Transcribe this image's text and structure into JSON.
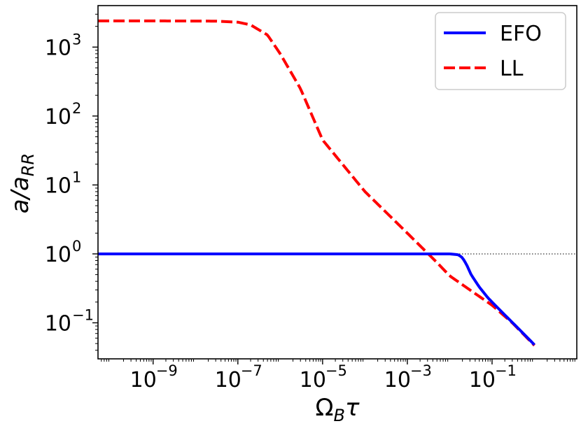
{
  "chart_data": {
    "type": "line",
    "xscale": "log",
    "yscale": "log",
    "xlim": [
      5e-11,
      10
    ],
    "ylim": [
      0.03,
      4000
    ],
    "xlabel": "Ω_B τ",
    "ylabel": "a/a_RR",
    "xticks": [
      {
        "value": 1e-09,
        "base": "10",
        "exp": "−9"
      },
      {
        "value": 1e-07,
        "base": "10",
        "exp": "−7"
      },
      {
        "value": 1e-05,
        "base": "10",
        "exp": "−5"
      },
      {
        "value": 0.001,
        "base": "10",
        "exp": "−3"
      },
      {
        "value": 0.1,
        "base": "10",
        "exp": "−1"
      }
    ],
    "yticks": [
      {
        "value": 0.1,
        "base": "10",
        "exp": "−1"
      },
      {
        "value": 1,
        "base": "10",
        "exp": "0"
      },
      {
        "value": 10,
        "base": "10",
        "exp": "1"
      },
      {
        "value": 100,
        "base": "10",
        "exp": "2"
      },
      {
        "value": 1000,
        "base": "10",
        "exp": "3"
      }
    ],
    "reference_line": {
      "y": 1,
      "style": "dotted",
      "color": "#000000"
    },
    "legend": {
      "position": "top-right"
    },
    "series": [
      {
        "name": "EFO",
        "color": "#0000ff",
        "style": "solid",
        "points": [
          {
            "x": 5e-11,
            "y": 1.0
          },
          {
            "x": 1e-09,
            "y": 1.0
          },
          {
            "x": 1e-07,
            "y": 1.0
          },
          {
            "x": 1e-05,
            "y": 1.0
          },
          {
            "x": 0.001,
            "y": 1.0
          },
          {
            "x": 0.01,
            "y": 1.0
          },
          {
            "x": 0.016,
            "y": 0.97
          },
          {
            "x": 0.02,
            "y": 0.88
          },
          {
            "x": 0.025,
            "y": 0.7
          },
          {
            "x": 0.032,
            "y": 0.5
          },
          {
            "x": 0.05,
            "y": 0.33
          },
          {
            "x": 0.08,
            "y": 0.23
          },
          {
            "x": 0.1,
            "y": 0.2
          },
          {
            "x": 0.2,
            "y": 0.13
          },
          {
            "x": 0.4,
            "y": 0.085
          },
          {
            "x": 0.7,
            "y": 0.06
          },
          {
            "x": 1.0,
            "y": 0.048
          }
        ]
      },
      {
        "name": "LL",
        "color": "#ff0000",
        "style": "dashed",
        "points": [
          {
            "x": 5e-11,
            "y": 2400
          },
          {
            "x": 1e-09,
            "y": 2400
          },
          {
            "x": 3e-08,
            "y": 2380
          },
          {
            "x": 1e-07,
            "y": 2300
          },
          {
            "x": 2e-07,
            "y": 2100
          },
          {
            "x": 5e-07,
            "y": 1500
          },
          {
            "x": 1e-06,
            "y": 800
          },
          {
            "x": 3e-06,
            "y": 250
          },
          {
            "x": 1e-05,
            "y": 45
          },
          {
            "x": 0.0001,
            "y": 8
          },
          {
            "x": 0.001,
            "y": 2
          },
          {
            "x": 0.005,
            "y": 0.75
          },
          {
            "x": 0.01,
            "y": 0.48
          },
          {
            "x": 0.03,
            "y": 0.3
          },
          {
            "x": 0.1,
            "y": 0.18
          },
          {
            "x": 0.3,
            "y": 0.1
          },
          {
            "x": 1.0,
            "y": 0.047
          }
        ]
      }
    ]
  }
}
